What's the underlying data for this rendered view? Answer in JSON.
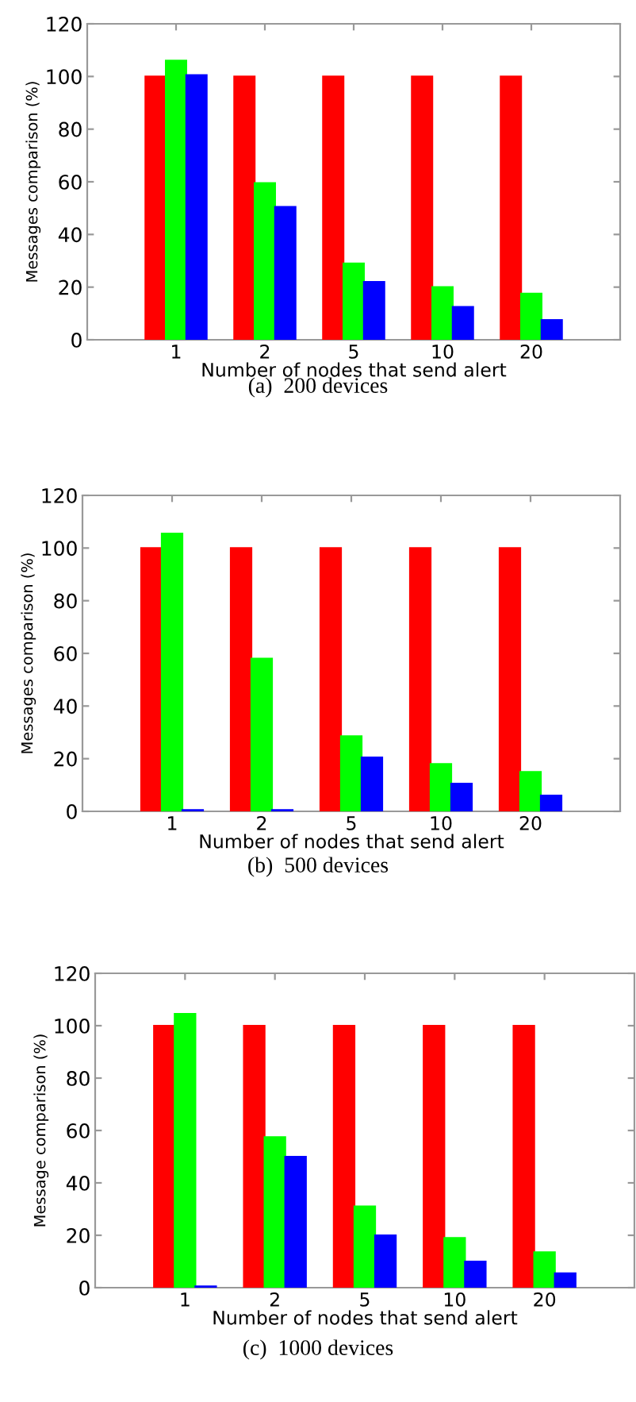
{
  "chart_data": [
    {
      "type": "bar",
      "title": "(a)  200 devices",
      "xlabel": "Number of nodes that send alert",
      "ylabel": "Messages comparison (%)",
      "categories": [
        "1",
        "2",
        "5",
        "10",
        "20"
      ],
      "ylim": [
        0,
        120
      ],
      "yticks": [
        0,
        20,
        40,
        60,
        80,
        100,
        120
      ],
      "grid": false,
      "series": [
        {
          "color": "#ff0000",
          "values": [
            100,
            100,
            100,
            100,
            100
          ]
        },
        {
          "color": "#00ff00",
          "values": [
            106,
            59.5,
            29,
            20,
            17.5
          ]
        },
        {
          "color": "#0000ff",
          "values": [
            100.5,
            50.5,
            22,
            12.5,
            7.5
          ]
        }
      ]
    },
    {
      "type": "bar",
      "title": "(b)  500 devices",
      "xlabel": "Number of nodes that send alert",
      "ylabel": "Messages comparison (%)",
      "categories": [
        "1",
        "2",
        "5",
        "10",
        "20"
      ],
      "ylim": [
        0,
        120
      ],
      "yticks": [
        0,
        20,
        40,
        60,
        80,
        100,
        120
      ],
      "grid": false,
      "series": [
        {
          "color": "#ff0000",
          "values": [
            100,
            100,
            100,
            100,
            100
          ]
        },
        {
          "color": "#00ff00",
          "values": [
            105.5,
            58,
            28.5,
            18,
            15
          ]
        },
        {
          "color": "#0000ff",
          "values": [
            0.5,
            0.5,
            20.5,
            10.5,
            6
          ]
        }
      ]
    },
    {
      "type": "bar",
      "title": "(c)  1000 devices",
      "xlabel": "Number of nodes that send alert",
      "ylabel": "Message comparison (%)",
      "categories": [
        "1",
        "2",
        "5",
        "10",
        "20"
      ],
      "ylim": [
        0,
        120
      ],
      "yticks": [
        0,
        20,
        40,
        60,
        80,
        100,
        120
      ],
      "grid": false,
      "series": [
        {
          "color": "#ff0000",
          "values": [
            100,
            100,
            100,
            100,
            100
          ]
        },
        {
          "color": "#00ff00",
          "values": [
            104.5,
            57.5,
            31,
            19,
            13.5
          ]
        },
        {
          "color": "#0000ff",
          "values": [
            0.5,
            50,
            20,
            10,
            5.5
          ]
        }
      ]
    }
  ]
}
